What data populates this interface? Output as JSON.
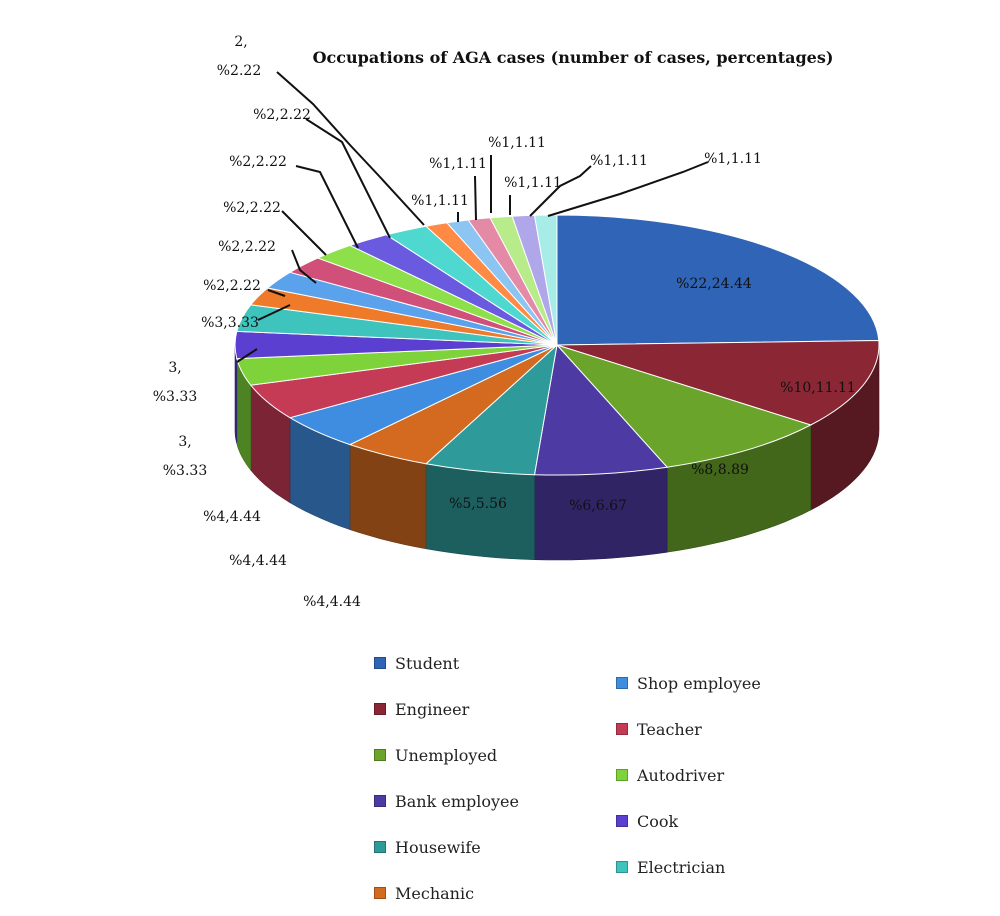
{
  "chart_data": {
    "type": "pie",
    "title": "Occupations of AGA cases (number of cases, percentages)",
    "style": "3d-exploded-tilted",
    "legend_position": "bottom",
    "slices": [
      {
        "label": "Student",
        "value": 22,
        "percent": 24.44,
        "data_label": "%22,24.44",
        "color": "#2f64b6"
      },
      {
        "label": "Engineer",
        "value": 10,
        "percent": 11.11,
        "data_label": "%10,11.11",
        "color": "#8b2635"
      },
      {
        "label": "Unemployed",
        "value": 8,
        "percent": 8.89,
        "data_label": "%8,8.89",
        "color": "#6aa42a"
      },
      {
        "label": "Bank employee",
        "value": 6,
        "percent": 6.67,
        "data_label": "%6,6.67",
        "color": "#4d3aa3"
      },
      {
        "label": "Housewife",
        "value": 5,
        "percent": 5.56,
        "data_label": "%5,5.56",
        "color": "#2f9a9a"
      },
      {
        "label": "Mechanic",
        "value": 4,
        "percent": 4.44,
        "data_label": "%4,4.44",
        "color": "#d46a1f"
      },
      {
        "label": "Shop employee",
        "value": 4,
        "percent": 4.44,
        "data_label": "%4,4.44",
        "color": "#3f8de0"
      },
      {
        "label": "Teacher",
        "value": 4,
        "percent": 4.44,
        "data_label": "%4,4.44",
        "color": "#c53a55"
      },
      {
        "label": "Autodriver",
        "value": 3,
        "percent": 3.33,
        "data_label_lines": [
          "3,",
          "%3.33"
        ],
        "color": "#7ed33a"
      },
      {
        "label": "Cook",
        "value": 3,
        "percent": 3.33,
        "data_label_lines": [
          "3,",
          "%3.33"
        ],
        "color": "#5b3fd0"
      },
      {
        "label": "Electrician",
        "value": 3,
        "percent": 3.33,
        "data_label": "%3,3.33",
        "color": "#3ec4bd"
      },
      {
        "value": 2,
        "percent": 2.22,
        "data_label": "%2,2.22",
        "color": "#ef7a2a"
      },
      {
        "value": 2,
        "percent": 2.22,
        "data_label": "%2,2.22",
        "color": "#5aa2ec"
      },
      {
        "value": 2,
        "percent": 2.22,
        "data_label": "%2,2.22",
        "color": "#d0507a"
      },
      {
        "value": 2,
        "percent": 2.22,
        "data_label": "%2,2.22",
        "color": "#8ee04a"
      },
      {
        "value": 2,
        "percent": 2.22,
        "data_label": "%2,2.22",
        "color": "#6a5ae0"
      },
      {
        "value": 2,
        "percent": 2.22,
        "data_label_lines": [
          "2,",
          "%2.22"
        ],
        "color": "#4fd8d0"
      },
      {
        "value": 1,
        "percent": 1.11,
        "data_label": "%1,1.11",
        "color": "#ff8a45"
      },
      {
        "value": 1,
        "percent": 1.11,
        "data_label": "%1,1.11",
        "color": "#8cc4f2"
      },
      {
        "value": 1,
        "percent": 1.11,
        "data_label": "%1,1.11",
        "color": "#e48aa6"
      },
      {
        "value": 1,
        "percent": 1.11,
        "data_label": "%1,1.11",
        "color": "#b8ec8a"
      },
      {
        "value": 1,
        "percent": 1.11,
        "data_label": "%1,1.11",
        "color": "#b0a6ea"
      },
      {
        "value": 1,
        "percent": 1.11,
        "data_label": "%1,1.11",
        "color": "#a8ece8"
      }
    ],
    "legend_left": [
      "Student",
      "Engineer",
      "Unemployed",
      "Bank employee",
      "Housewife",
      "Mechanic"
    ],
    "legend_right": [
      "Shop employee",
      "Teacher",
      "Autodriver",
      "Cook",
      "Electrician"
    ]
  }
}
